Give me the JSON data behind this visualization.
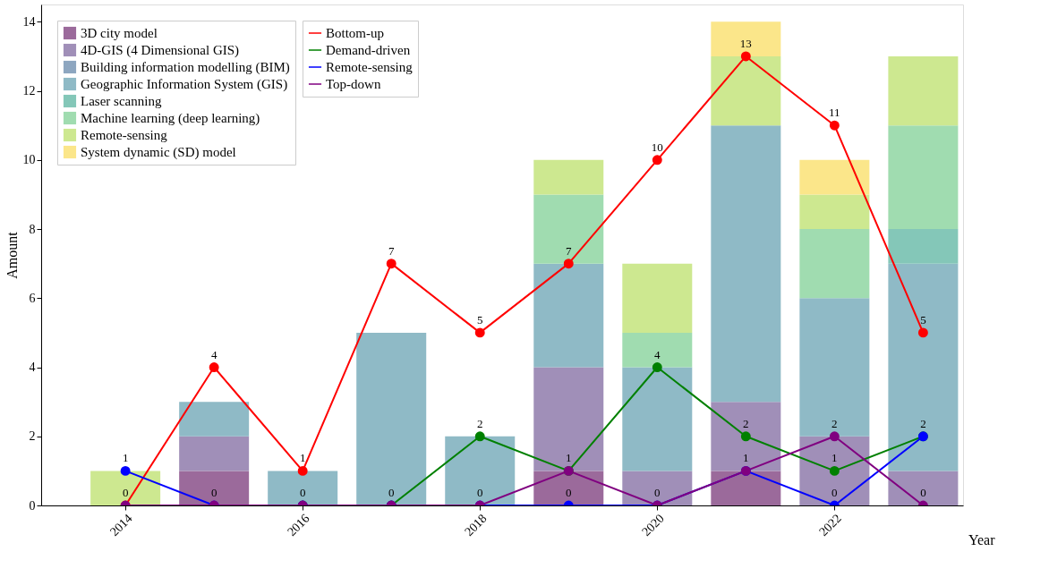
{
  "chart_data": {
    "type": "bar",
    "stacked": true,
    "xlabel": "Year",
    "ylabel": "Amount",
    "x": [
      2014,
      2015,
      2016,
      2017,
      2018,
      2019,
      2020,
      2021,
      2022,
      2023
    ],
    "xlim": [
      2013.1,
      2023.4
    ],
    "xticks": [
      2014,
      2016,
      2018,
      2020,
      2022
    ],
    "ylim": [
      0,
      14.5
    ],
    "yticks": [
      0,
      2,
      4,
      6,
      8,
      10,
      12,
      14
    ],
    "legend": "top left",
    "grid": false,
    "marker": "circle",
    "line_style": "solid",
    "series": [
      {
        "name": "Bottom-up",
        "type": "line",
        "color": "#ff0000",
        "values": [
          0,
          4,
          1,
          7,
          5,
          7,
          10,
          13,
          11,
          5
        ],
        "value_labels": [
          "0",
          "4",
          "1",
          "7",
          "5",
          "7",
          "10",
          "13",
          "11",
          "5"
        ]
      },
      {
        "name": "Demand-driven",
        "type": "line",
        "color": "#008000",
        "values": [
          null,
          null,
          0,
          0,
          2,
          1,
          4,
          2,
          1,
          2
        ],
        "value_labels": [
          null,
          null,
          "0",
          "0",
          "2",
          "1",
          "4",
          "2",
          "1",
          "2"
        ]
      },
      {
        "name": "Remote-sensing",
        "type": "line",
        "color": "#0000ff",
        "values": [
          1,
          0,
          0,
          0,
          0,
          0,
          0,
          1,
          0,
          2
        ],
        "value_labels": [
          "1",
          null,
          null,
          null,
          "0",
          "0",
          "0",
          "1",
          "0",
          null
        ]
      },
      {
        "name": "Top-down",
        "type": "line",
        "color": "#800080",
        "values": [
          0,
          0,
          0,
          0,
          0,
          1,
          0,
          1,
          2,
          0
        ],
        "value_labels": [
          null,
          "0",
          null,
          null,
          null,
          null,
          null,
          null,
          "2",
          "0"
        ]
      },
      {
        "name": "3D city model",
        "color": "#9b6a9b",
        "values": [
          0,
          1,
          0,
          0,
          0,
          1,
          0,
          1,
          0,
          0
        ]
      },
      {
        "name": "4D-GIS (4 Dimensional GIS)",
        "color": "#a08fb8",
        "values": [
          0,
          1,
          0,
          0,
          0,
          3,
          1,
          2,
          2,
          1
        ]
      },
      {
        "name": "Building information modelling (BIM)",
        "color": "#8da6c0",
        "values": [
          0,
          0,
          0,
          0,
          0,
          0,
          0,
          0,
          0,
          0
        ]
      },
      {
        "name": "Geographic Information System (GIS)",
        "color": "#8fbac6",
        "values": [
          0,
          1,
          1,
          5,
          2,
          3,
          3,
          8,
          4,
          6
        ]
      },
      {
        "name": "Laser scanning",
        "color": "#84c7b8",
        "values": [
          0,
          0,
          0,
          0,
          0,
          0,
          0,
          0,
          0,
          1
        ]
      },
      {
        "name": "Machine learning (deep learning)",
        "color": "#a0dcb0",
        "values": [
          0,
          0,
          0,
          0,
          0,
          2,
          1,
          0,
          2,
          3
        ]
      },
      {
        "name": "Remote-sensing",
        "color": "#cde890",
        "values": [
          1,
          0,
          0,
          0,
          0,
          1,
          2,
          2,
          1,
          2
        ]
      },
      {
        "name": "System dynamic (SD) model",
        "color": "#fbe68a",
        "values": [
          0,
          0,
          0,
          0,
          0,
          0,
          0,
          1,
          1,
          0
        ]
      }
    ]
  }
}
